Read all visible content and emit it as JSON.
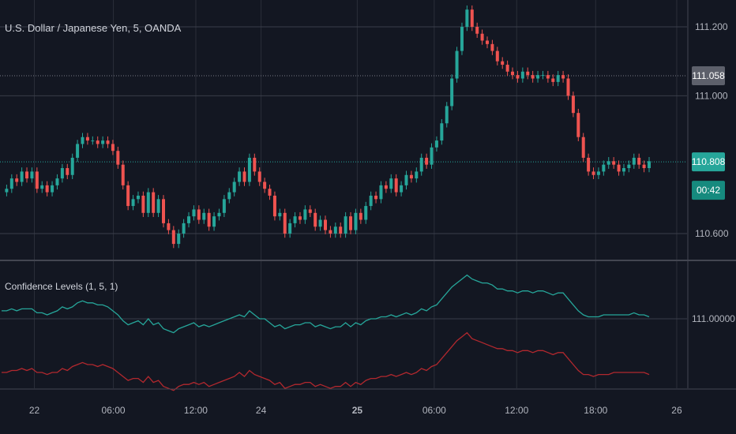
{
  "header": {
    "symbol_title": "U.S. Dollar / Japanese Yen, 5, OANDA",
    "indicator_title": "Confidence Levels (1, 5, 1)"
  },
  "chart_data": [
    {
      "type": "line",
      "series": [
        {
          "values": [
            110.72,
            110.73,
            110.76,
            110.75,
            110.78,
            110.76,
            110.78,
            110.73,
            110.74,
            110.72,
            110.74,
            110.76,
            110.79,
            110.77,
            110.82,
            110.86,
            110.88,
            110.87,
            110.87,
            110.86,
            110.87,
            110.86,
            110.84,
            110.8,
            110.74,
            110.68,
            110.7,
            110.71,
            110.66,
            110.72,
            110.66,
            110.7,
            110.63,
            110.61,
            110.57,
            110.6,
            110.63,
            110.65,
            110.67,
            110.64,
            110.66,
            110.62,
            110.65,
            110.66,
            110.7,
            110.72,
            110.75,
            110.78,
            110.75,
            110.82,
            110.78,
            110.75,
            110.73,
            110.71,
            110.65,
            110.66,
            110.6,
            110.63,
            110.65,
            110.64,
            110.67,
            110.66,
            110.62,
            110.64,
            110.61,
            110.6,
            110.62,
            110.6,
            110.65,
            110.61,
            110.66,
            110.64,
            110.68,
            110.71,
            110.7,
            110.74,
            110.73,
            110.76,
            110.72,
            110.74,
            110.77,
            110.76,
            110.78,
            110.82,
            110.8,
            110.85,
            110.87,
            110.92,
            110.97,
            111.05,
            111.13,
            111.2,
            111.25,
            111.2,
            111.18,
            111.16,
            111.15,
            111.13,
            111.1,
            111.09,
            111.07,
            111.06,
            111.05,
            111.07,
            111.06,
            111.05,
            111.06,
            111.06,
            111.05,
            111.04,
            111.06,
            111.05,
            111.0,
            110.95,
            110.88,
            110.82,
            110.78,
            110.77,
            110.78,
            110.8,
            110.81,
            110.8,
            110.78,
            110.79,
            110.8,
            110.82,
            110.8,
            110.79,
            110.81
          ]
        },
        {
          "values": [
            111.058,
            110.808
          ]
        }
      ],
      "y_ticks": [
        "111.200",
        "111.000",
        "110.600"
      ],
      "price_labels": [
        "111.058",
        "110.808",
        "00:42"
      ],
      "colors": {
        "up": "#26a69a",
        "down": "#ef5350",
        "last_price": "#26a69a",
        "prev_close": "#787b86"
      }
    },
    {
      "type": "line",
      "series": [
        {
          "values": [
            111.04,
            111.04,
            111.05,
            111.04,
            111.05,
            111.05,
            111.05,
            111.03,
            111.03,
            111.02,
            111.03,
            111.04,
            111.06,
            111.05,
            111.06,
            111.08,
            111.09,
            111.08,
            111.08,
            111.07,
            111.07,
            111.06,
            111.04,
            111.02,
            110.99,
            110.97,
            110.98,
            110.99,
            110.97,
            111.0,
            110.97,
            110.98,
            110.95,
            110.94,
            110.93,
            110.95,
            110.96,
            110.97,
            110.98,
            110.96,
            110.97,
            110.96,
            110.97,
            110.98,
            110.99,
            111.0,
            111.01,
            111.02,
            111.01,
            111.04,
            111.02,
            111.0,
            111.0,
            110.98,
            110.96,
            110.97,
            110.95,
            110.96,
            110.97,
            110.97,
            110.98,
            110.98,
            110.96,
            110.97,
            110.96,
            110.95,
            110.96,
            110.96,
            110.98,
            110.96,
            110.98,
            110.97,
            110.99,
            111.0,
            111.0,
            111.01,
            111.01,
            111.02,
            111.01,
            111.02,
            111.03,
            111.02,
            111.03,
            111.05,
            111.04,
            111.06,
            111.07,
            111.1,
            111.13,
            111.16,
            111.18,
            111.2,
            111.22,
            111.2,
            111.19,
            111.18,
            111.18,
            111.17,
            111.15,
            111.15,
            111.14,
            111.14,
            111.13,
            111.14,
            111.14,
            111.13,
            111.14,
            111.14,
            111.13,
            111.12,
            111.13,
            111.13,
            111.1,
            111.07,
            111.04,
            111.02,
            111.01,
            111.01,
            111.01,
            111.02,
            111.02,
            111.02,
            111.02,
            111.02,
            111.02,
            111.03,
            111.02,
            111.02,
            111.01
          ]
        },
        {
          "values": [
            110.73,
            110.73,
            110.74,
            110.74,
            110.75,
            110.74,
            110.75,
            110.73,
            110.73,
            110.72,
            110.73,
            110.73,
            110.75,
            110.74,
            110.76,
            110.77,
            110.78,
            110.77,
            110.77,
            110.76,
            110.77,
            110.76,
            110.75,
            110.73,
            110.71,
            110.69,
            110.7,
            110.7,
            110.68,
            110.71,
            110.68,
            110.69,
            110.66,
            110.65,
            110.64,
            110.66,
            110.67,
            110.67,
            110.68,
            110.67,
            110.68,
            110.66,
            110.67,
            110.68,
            110.69,
            110.7,
            110.71,
            110.73,
            110.71,
            110.74,
            110.72,
            110.71,
            110.7,
            110.69,
            110.67,
            110.68,
            110.65,
            110.66,
            110.67,
            110.67,
            110.68,
            110.68,
            110.66,
            110.67,
            110.66,
            110.65,
            110.66,
            110.66,
            110.68,
            110.66,
            110.68,
            110.67,
            110.69,
            110.7,
            110.7,
            110.71,
            110.71,
            110.72,
            110.71,
            110.72,
            110.73,
            110.72,
            110.73,
            110.75,
            110.74,
            110.76,
            110.77,
            110.8,
            110.83,
            110.86,
            110.89,
            110.91,
            110.93,
            110.9,
            110.89,
            110.88,
            110.87,
            110.86,
            110.85,
            110.85,
            110.84,
            110.84,
            110.83,
            110.84,
            110.84,
            110.83,
            110.84,
            110.84,
            110.83,
            110.82,
            110.83,
            110.83,
            110.8,
            110.77,
            110.74,
            110.72,
            110.72,
            110.71,
            110.72,
            110.72,
            110.72,
            110.73,
            110.73,
            110.73,
            110.73,
            110.73,
            110.73,
            110.73,
            110.72
          ]
        }
      ],
      "y_ticks": [
        "111.00000"
      ],
      "colors": {
        "upper": "#26a69a",
        "lower": "#b2282e"
      }
    }
  ],
  "x_axis": {
    "ticks": [
      {
        "label": "22",
        "bold": false,
        "t": 0.05
      },
      {
        "label": "06:00",
        "bold": false,
        "t": 0.165
      },
      {
        "label": "12:00",
        "bold": false,
        "t": 0.285
      },
      {
        "label": "24",
        "bold": false,
        "t": 0.38
      },
      {
        "label": "25",
        "bold": true,
        "t": 0.52
      },
      {
        "label": "06:00",
        "bold": false,
        "t": 0.632
      },
      {
        "label": "12:00",
        "bold": false,
        "t": 0.752
      },
      {
        "label": "18:00",
        "bold": false,
        "t": 0.867
      },
      {
        "label": "26",
        "bold": false,
        "t": 0.985
      }
    ]
  }
}
